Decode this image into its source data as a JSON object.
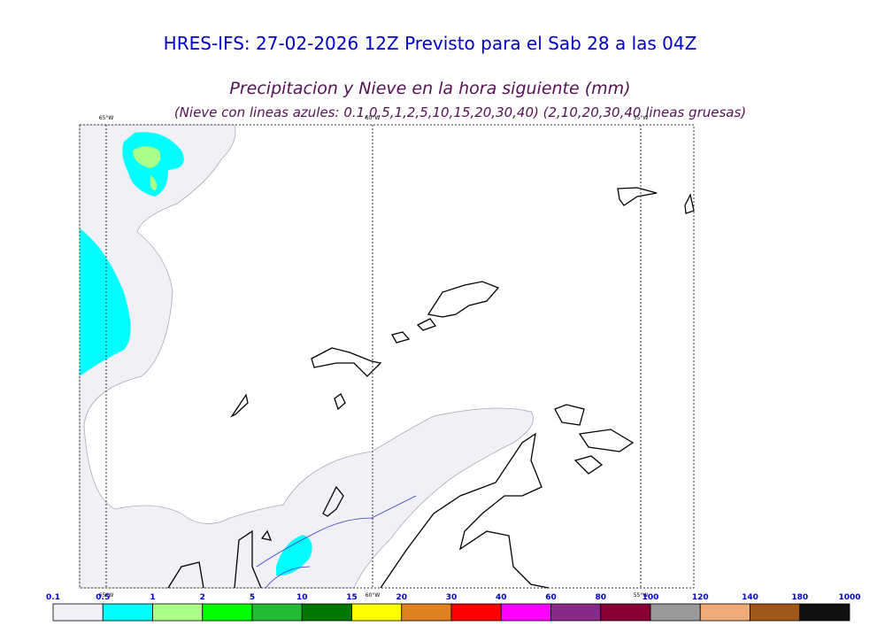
{
  "header": {
    "title": "HRES-IFS: 27-02-2026 12Z Previsto para el Sab 28 a las 04Z"
  },
  "map": {
    "title": "Precipitacion y Nieve en la hora siguiente (mm)",
    "subtitle": "(Nieve con lineas azules: 0.1,0.5,1,2,5,10,15,20,30,40)  (2,10,20,30,40 lineas gruesas)",
    "lon_labels": [
      "65°W",
      "60°W",
      "55°W"
    ]
  },
  "colorbar": {
    "labels": [
      0.1,
      0.5,
      1,
      2,
      5,
      10,
      15,
      20,
      30,
      40,
      60,
      80,
      100,
      120,
      140,
      180,
      1000
    ],
    "colors": [
      "#f0f0f6",
      "#00ffff",
      "#aaff88",
      "#00ff00",
      "#22bb33",
      "#007700",
      "#ffff00",
      "#e08020",
      "#ff0000",
      "#ff00ff",
      "#882a88",
      "#880033",
      "#999999",
      "#eeaa77",
      "#a0581a",
      "#111111"
    ]
  }
}
